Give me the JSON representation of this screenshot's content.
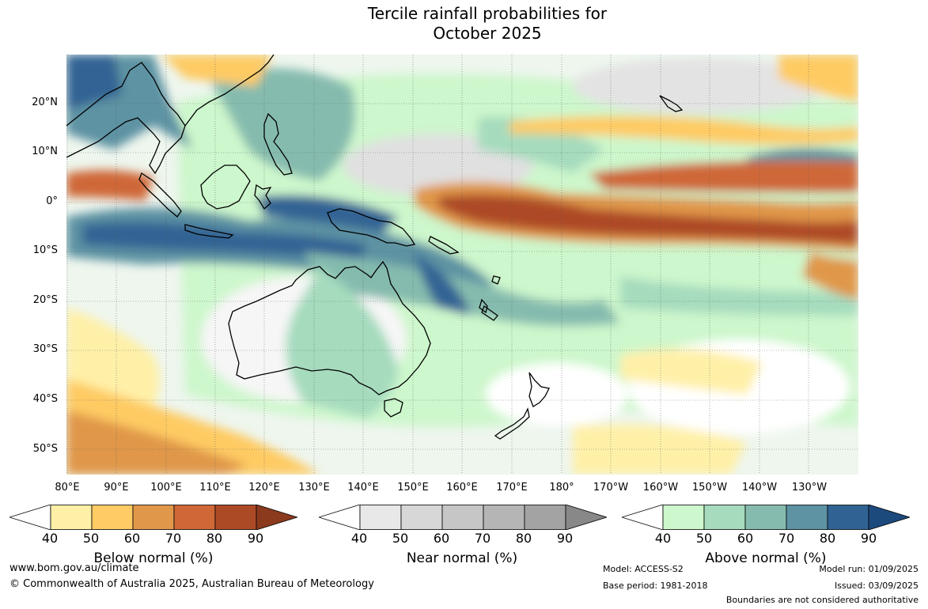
{
  "title": {
    "line1": "Tercile rainfall probabilities for",
    "line2": "October 2025"
  },
  "lat_labels": [
    "20°N",
    "10°N",
    "0°",
    "10°S",
    "20°S",
    "30°S",
    "40°S",
    "50°S"
  ],
  "lon_labels": [
    "80°E",
    "90°E",
    "100°E",
    "110°E",
    "120°E",
    "130°E",
    "140°E",
    "150°E",
    "160°E",
    "170°E",
    "180°",
    "170°W",
    "160°W",
    "150°W",
    "140°W",
    "130°W"
  ],
  "colorbars": [
    {
      "label": "Below normal (%)",
      "ticks": [
        "40",
        "50",
        "60",
        "70",
        "80",
        "90"
      ],
      "colors": [
        "#fff0a8",
        "#fecb64",
        "#e0974a",
        "#cf6737",
        "#ad4a26",
        "#8b3a1e"
      ]
    },
    {
      "label": "Near normal (%)",
      "ticks": [
        "40",
        "50",
        "60",
        "70",
        "80",
        "90"
      ],
      "colors": [
        "#e8e8e8",
        "#d7d7d7",
        "#c6c6c6",
        "#b5b5b5",
        "#a3a3a3",
        "#888888"
      ]
    },
    {
      "label": "Above normal (%)",
      "ticks": [
        "40",
        "50",
        "60",
        "70",
        "80",
        "90"
      ],
      "colors": [
        "#cdf7cc",
        "#a6dbbe",
        "#85bbae",
        "#5d93a3",
        "#306394",
        "#1d4a7d"
      ]
    }
  ],
  "footer": {
    "url": "www.bom.gov.au/climate",
    "copyright": "© Commonwealth of Australia 2025, Australian Bureau of Meteorology",
    "model": "Model: ACCESS-S2",
    "base_period": "Base period: 1981-2018",
    "model_run": "Model run: 01/09/2025",
    "issued": "Issued: 03/09/2025",
    "boundaries": "Boundaries are not considered authoritative"
  }
}
